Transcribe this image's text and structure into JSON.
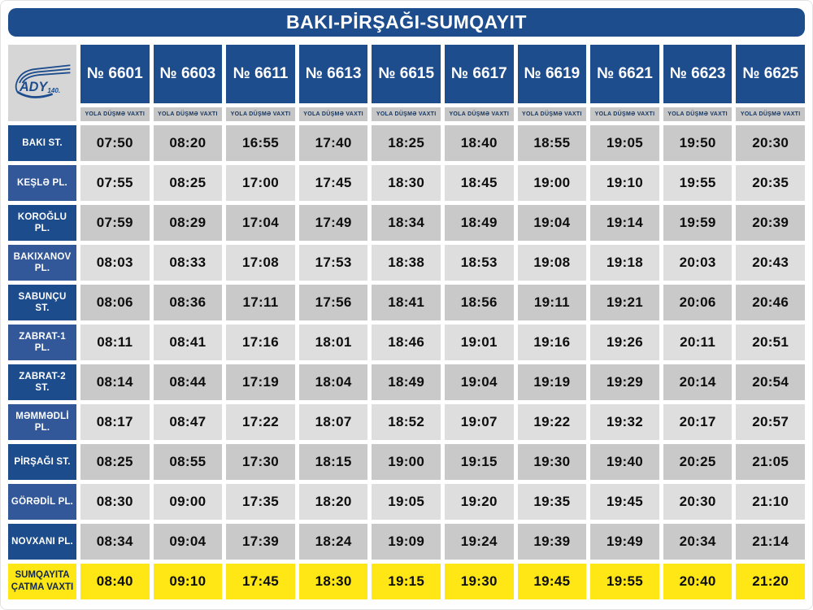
{
  "title": "BAKI-PİRŞAĞI-SUMQAYIT",
  "logo": {
    "brand": "ADY",
    "badge": "140."
  },
  "departure_time_label": "YOLA DÜŞMƏ VAXTI",
  "trains": [
    "№ 6601",
    "№ 6603",
    "№ 6611",
    "№ 6613",
    "№ 6615",
    "№ 6617",
    "№ 6619",
    "№ 6621",
    "№ 6623",
    "№ 6625"
  ],
  "stations": [
    {
      "name": "BAKI ST.",
      "type": "stop",
      "times": [
        "07:50",
        "08:20",
        "16:55",
        "17:40",
        "18:25",
        "18:40",
        "18:55",
        "19:05",
        "19:50",
        "20:30"
      ]
    },
    {
      "name": "KEŞLƏ PL.",
      "type": "stop",
      "times": [
        "07:55",
        "08:25",
        "17:00",
        "17:45",
        "18:30",
        "18:45",
        "19:00",
        "19:10",
        "19:55",
        "20:35"
      ]
    },
    {
      "name": "KOROĞLU PL.",
      "type": "stop",
      "times": [
        "07:59",
        "08:29",
        "17:04",
        "17:49",
        "18:34",
        "18:49",
        "19:04",
        "19:14",
        "19:59",
        "20:39"
      ]
    },
    {
      "name": "BAKIXANOV PL.",
      "type": "stop",
      "times": [
        "08:03",
        "08:33",
        "17:08",
        "17:53",
        "18:38",
        "18:53",
        "19:08",
        "19:18",
        "20:03",
        "20:43"
      ]
    },
    {
      "name": "SABUNÇU ST.",
      "type": "stop",
      "times": [
        "08:06",
        "08:36",
        "17:11",
        "17:56",
        "18:41",
        "18:56",
        "19:11",
        "19:21",
        "20:06",
        "20:46"
      ]
    },
    {
      "name": "ZABRAT-1 PL.",
      "type": "stop",
      "times": [
        "08:11",
        "08:41",
        "17:16",
        "18:01",
        "18:46",
        "19:01",
        "19:16",
        "19:26",
        "20:11",
        "20:51"
      ]
    },
    {
      "name": "ZABRAT-2 ST.",
      "type": "stop",
      "times": [
        "08:14",
        "08:44",
        "17:19",
        "18:04",
        "18:49",
        "19:04",
        "19:19",
        "19:29",
        "20:14",
        "20:54"
      ]
    },
    {
      "name": "MƏMMƏDLİ PL.",
      "type": "stop",
      "times": [
        "08:17",
        "08:47",
        "17:22",
        "18:07",
        "18:52",
        "19:07",
        "19:22",
        "19:32",
        "20:17",
        "20:57"
      ]
    },
    {
      "name": "PİRŞAĞI ST.",
      "type": "stop",
      "times": [
        "08:25",
        "08:55",
        "17:30",
        "18:15",
        "19:00",
        "19:15",
        "19:30",
        "19:40",
        "20:25",
        "21:05"
      ]
    },
    {
      "name": "GÖRƏDİL PL.",
      "type": "stop",
      "times": [
        "08:30",
        "09:00",
        "17:35",
        "18:20",
        "19:05",
        "19:20",
        "19:35",
        "19:45",
        "20:30",
        "21:10"
      ]
    },
    {
      "name": "NOVXANI PL.",
      "type": "stop",
      "times": [
        "08:34",
        "09:04",
        "17:39",
        "18:24",
        "19:09",
        "19:24",
        "19:39",
        "19:49",
        "20:34",
        "21:14"
      ]
    },
    {
      "name": "SUMQAYITA ÇATMA VAXTI",
      "type": "arrival",
      "times": [
        "08:40",
        "09:10",
        "17:45",
        "18:30",
        "19:15",
        "19:30",
        "19:45",
        "19:55",
        "20:40",
        "21:20"
      ]
    }
  ],
  "colors": {
    "header_blue": "#1e4d8e",
    "station_blue_dark": "#1d4c8c",
    "station_blue_light": "#33589a",
    "time_gray_dark": "#c9c9c9",
    "time_gray_light": "#dedede",
    "subheader_gray": "#c6c6c6",
    "logo_gray": "#d6d6d6",
    "arrival_yellow": "#ffe716"
  }
}
